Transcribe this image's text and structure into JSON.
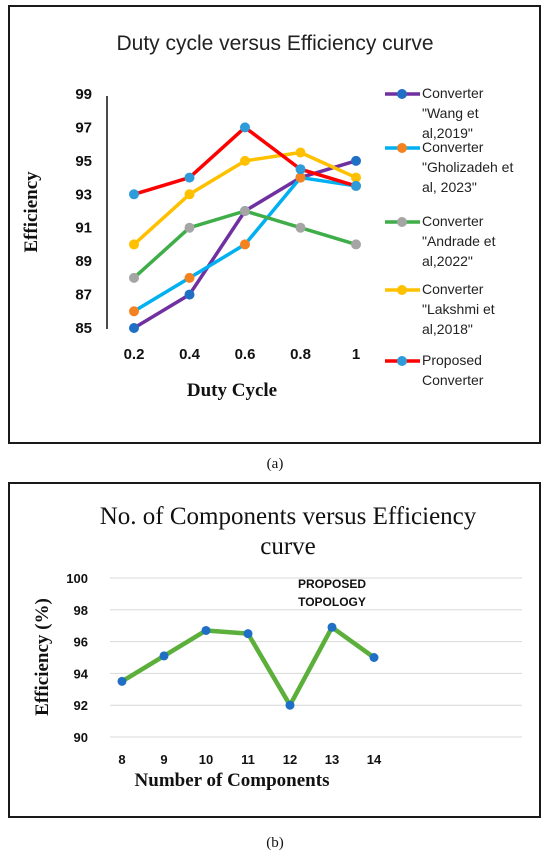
{
  "chart_data": [
    {
      "type": "line",
      "title": "Duty cycle versus Efficiency curve",
      "xlabel": "Duty Cycle",
      "ylabel": "Efficiency",
      "categories": [
        "0.2",
        "0.4",
        "0.6",
        "0.8",
        "1"
      ],
      "ylim": [
        85,
        99
      ],
      "yticks": [
        85,
        87,
        89,
        91,
        93,
        95,
        97,
        99
      ],
      "grid": false,
      "legend_position": "right",
      "caption": "(a)",
      "series": [
        {
          "name": "Converter \"Wang et al,2019\"",
          "legend_lines": [
            "Converter",
            "\"Wang et",
            "al,2019\""
          ],
          "line_color": "#7030A0",
          "marker_color": "#1F6FC4",
          "values": [
            85,
            87,
            92,
            94,
            95
          ]
        },
        {
          "name": "Converter \"Gholizadeh et al, 2023\"",
          "legend_lines": [
            "Converter",
            "\"Gholizadeh et",
            "al, 2023\""
          ],
          "line_color": "#00B0F0",
          "marker_color": "#F58220",
          "values": [
            86,
            88,
            90,
            94,
            93.5
          ]
        },
        {
          "name": "Converter \"Andrade et al,2022\"",
          "legend_lines": [
            "Converter",
            "\"Andrade et",
            "al,2022\""
          ],
          "line_color": "#3FAE49",
          "marker_color": "#A5A5A5",
          "values": [
            88,
            91,
            92,
            91,
            90
          ]
        },
        {
          "name": "Converter \"Lakshmi et al,2018\"",
          "legend_lines": [
            "Converter",
            "\"Lakshmi et",
            "al,2018\""
          ],
          "line_color": "#FFC000",
          "marker_color": "#FFC000",
          "values": [
            90,
            93,
            95,
            95.5,
            94
          ]
        },
        {
          "name": "Proposed Converter",
          "legend_lines": [
            "Proposed",
            "Converter"
          ],
          "line_color": "#FF0000",
          "marker_color": "#2E9BDA",
          "values": [
            93,
            94,
            97,
            94.5,
            93.5
          ]
        }
      ]
    },
    {
      "type": "line",
      "title": "No. of Components versus Efficiency curve",
      "title_lines": [
        "No. of Components versus Efficiency",
        "curve"
      ],
      "xlabel": "Number of Components",
      "ylabel": "Efficiency (%)",
      "categories": [
        "8",
        "9",
        "10",
        "11",
        "12",
        "13",
        "14"
      ],
      "ylim": [
        90,
        100
      ],
      "yticks": [
        90,
        92,
        94,
        96,
        98,
        100
      ],
      "grid": true,
      "caption": "(b)",
      "annotation_lines": [
        "PROPOSED",
        "TOPOLOGY"
      ],
      "series": [
        {
          "line_color": "#5BAF3A",
          "marker_color": "#1F6FC4",
          "values": [
            93.5,
            95.1,
            96.7,
            96.5,
            92,
            96.9,
            95
          ]
        }
      ]
    }
  ]
}
